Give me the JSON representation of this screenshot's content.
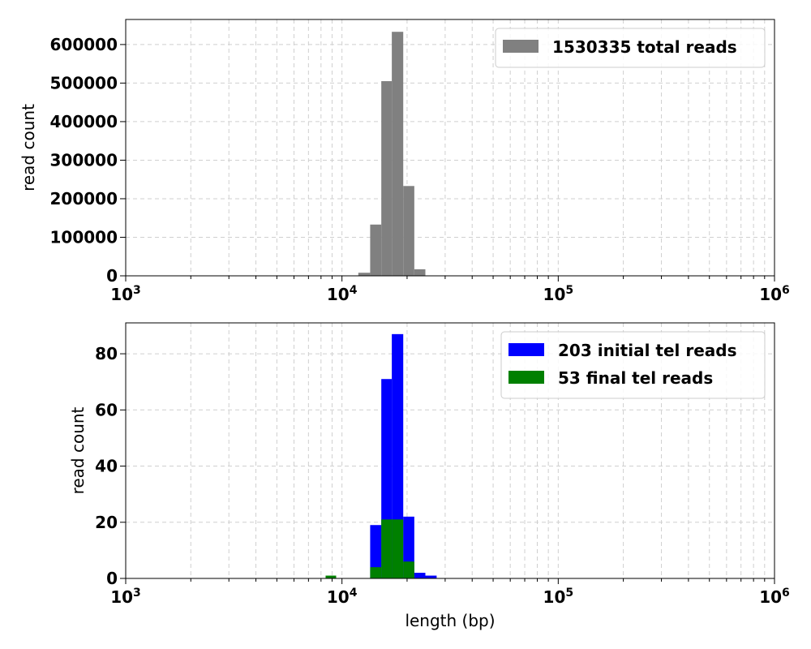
{
  "chart_data": [
    {
      "type": "histogram",
      "x_scale": "log",
      "xlim": [
        1000,
        1000000
      ],
      "ylim": [
        0,
        665000
      ],
      "xlabel": "",
      "ylabel": "read count",
      "grid": true,
      "legend_position": "top-right",
      "x_ticks": [
        {
          "value": 1000,
          "base": "10",
          "exp": "3"
        },
        {
          "value": 10000,
          "base": "10",
          "exp": "4"
        },
        {
          "value": 100000,
          "base": "10",
          "exp": "5"
        },
        {
          "value": 1000000,
          "base": "10",
          "exp": "6"
        }
      ],
      "y_ticks": [
        {
          "value": 0,
          "label": "0"
        },
        {
          "value": 100000,
          "label": "100000"
        },
        {
          "value": 200000,
          "label": "200000"
        },
        {
          "value": 300000,
          "label": "300000"
        },
        {
          "value": 400000,
          "label": "400000"
        },
        {
          "value": 500000,
          "label": "500000"
        },
        {
          "value": 600000,
          "label": "600000"
        }
      ],
      "series": [
        {
          "name": "1530335 total reads",
          "color": "#808080",
          "bins": [
            {
              "x0": 11900,
              "x1": 13500,
              "count": 8000
            },
            {
              "x0": 13500,
              "x1": 15200,
              "count": 133000
            },
            {
              "x0": 15200,
              "x1": 17000,
              "count": 505000
            },
            {
              "x0": 17000,
              "x1": 19200,
              "count": 633000
            },
            {
              "x0": 19200,
              "x1": 21600,
              "count": 233000
            },
            {
              "x0": 21600,
              "x1": 24300,
              "count": 17000
            }
          ]
        }
      ]
    },
    {
      "type": "histogram",
      "x_scale": "log",
      "xlim": [
        1000,
        1000000
      ],
      "ylim": [
        0,
        91
      ],
      "xlabel": "length (bp)",
      "ylabel": "read count",
      "grid": true,
      "legend_position": "top-right",
      "x_ticks": [
        {
          "value": 1000,
          "base": "10",
          "exp": "3"
        },
        {
          "value": 10000,
          "base": "10",
          "exp": "4"
        },
        {
          "value": 100000,
          "base": "10",
          "exp": "5"
        },
        {
          "value": 1000000,
          "base": "10",
          "exp": "6"
        }
      ],
      "y_ticks": [
        {
          "value": 0,
          "label": "0"
        },
        {
          "value": 20,
          "label": "20"
        },
        {
          "value": 40,
          "label": "40"
        },
        {
          "value": 60,
          "label": "60"
        },
        {
          "value": 80,
          "label": "80"
        }
      ],
      "series": [
        {
          "name": "203 initial tel reads",
          "color": "#0000ff",
          "bins": [
            {
              "x0": 13500,
              "x1": 15200,
              "count": 19
            },
            {
              "x0": 15200,
              "x1": 17000,
              "count": 71
            },
            {
              "x0": 17000,
              "x1": 19200,
              "count": 87
            },
            {
              "x0": 19200,
              "x1": 21600,
              "count": 22
            },
            {
              "x0": 21600,
              "x1": 24300,
              "count": 2
            },
            {
              "x0": 24300,
              "x1": 27400,
              "count": 1
            }
          ]
        },
        {
          "name": "53 final tel reads",
          "color": "#008000",
          "bins": [
            {
              "x0": 8400,
              "x1": 9400,
              "count": 1
            },
            {
              "x0": 13500,
              "x1": 15200,
              "count": 4
            },
            {
              "x0": 15200,
              "x1": 17000,
              "count": 21
            },
            {
              "x0": 17000,
              "x1": 19200,
              "count": 21
            },
            {
              "x0": 19200,
              "x1": 21600,
              "count": 6
            }
          ]
        }
      ]
    }
  ]
}
